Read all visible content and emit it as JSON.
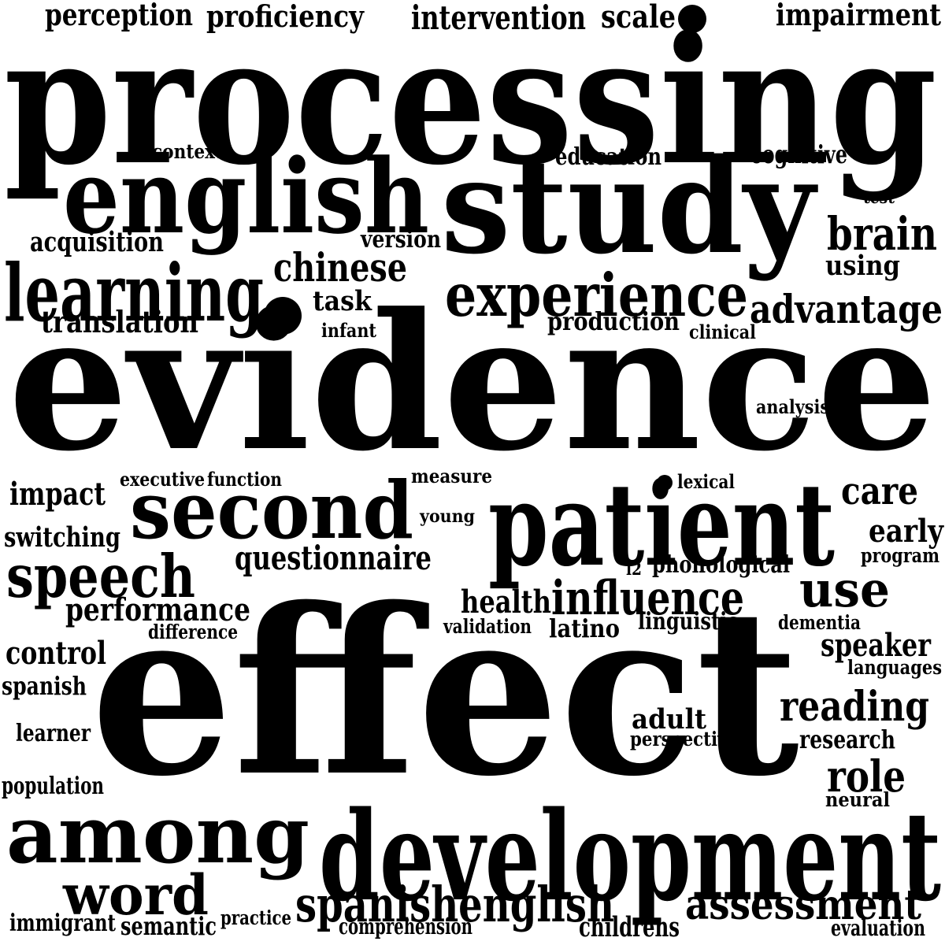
{
  "cloud": {
    "background": "#ffffff",
    "word_color": "#000000",
    "words": [
      "processing",
      "evidence",
      "effect",
      "development",
      "study",
      "english",
      "patient",
      "second",
      "among",
      "learning",
      "experience",
      "speech",
      "spanishenglish",
      "word",
      "assessment",
      "influence",
      "use",
      "reading",
      "brain",
      "advantage",
      "chinese",
      "role",
      "care",
      "questionnaire",
      "performance",
      "health",
      "intervention",
      "impairment",
      "proficiency",
      "perception",
      "scale",
      "control",
      "impact",
      "early",
      "speaker",
      "translation",
      "acquisition",
      "switching",
      "adult",
      "childrens",
      "task",
      "production",
      "latino",
      "linguistic",
      "phonological",
      "using",
      "research",
      "spanish",
      "education",
      "cognitive",
      "version",
      "semantic",
      "immigrant",
      "learner",
      "population",
      "evaluation",
      "comprehension",
      "difference",
      "languages",
      "neural",
      "perspective",
      "program",
      "validation",
      "dementia",
      "practice",
      "context",
      "executive",
      "function",
      "measure",
      "young",
      "infant",
      "clinical",
      "analysis",
      "test",
      "lexical",
      "l2"
    ]
  }
}
